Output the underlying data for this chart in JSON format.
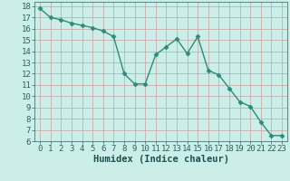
{
  "x": [
    0,
    1,
    2,
    3,
    4,
    5,
    6,
    7,
    8,
    9,
    10,
    11,
    12,
    13,
    14,
    15,
    16,
    17,
    18,
    19,
    20,
    21,
    22,
    23
  ],
  "y": [
    17.8,
    17.0,
    16.8,
    16.5,
    16.3,
    16.1,
    15.8,
    15.3,
    12.0,
    11.1,
    11.1,
    13.7,
    14.4,
    15.1,
    13.8,
    15.3,
    12.3,
    11.9,
    10.7,
    9.5,
    9.1,
    7.7,
    6.5,
    6.5
  ],
  "line_color": "#2d8b7a",
  "marker": "D",
  "marker_size": 2.5,
  "bg_color": "#cceee8",
  "grid_color": "#c8a0a0",
  "xlabel": "Humidex (Indice chaleur)",
  "xlim": [
    -0.5,
    23.5
  ],
  "ylim": [
    6,
    18.4
  ],
  "xticks": [
    0,
    1,
    2,
    3,
    4,
    5,
    6,
    7,
    8,
    9,
    10,
    11,
    12,
    13,
    14,
    15,
    16,
    17,
    18,
    19,
    20,
    21,
    22,
    23
  ],
  "yticks": [
    6,
    7,
    8,
    9,
    10,
    11,
    12,
    13,
    14,
    15,
    16,
    17,
    18
  ],
  "xlabel_fontsize": 7.5,
  "tick_fontsize": 6.5,
  "line_width": 1.0,
  "tick_color": "#2d6060",
  "label_color": "#1a5050"
}
